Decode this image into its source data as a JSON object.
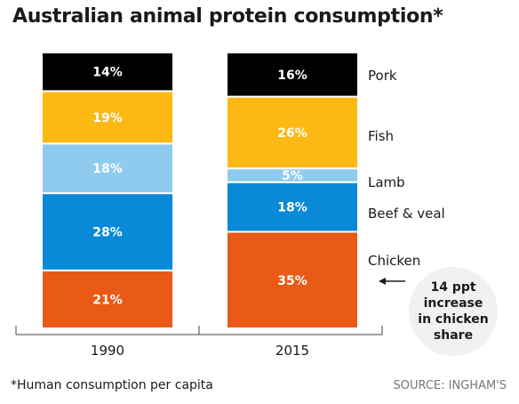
{
  "title": "Australian animal protein consumption*",
  "footnote": "*Human consumption per capita",
  "source": "SOURCE: INGHAM'S",
  "annotation": {
    "lines": [
      "14 ppt",
      "increase",
      "in chicken",
      "share"
    ]
  },
  "colors": {
    "Pork": "#000000",
    "Fish": "#fdb913",
    "Lamb": "#8fcbee",
    "Beef & veal": "#0a8ad6",
    "Chicken": "#e85a16"
  },
  "chart_data": {
    "type": "bar",
    "stacked": true,
    "categories": [
      "1990",
      "2015"
    ],
    "series": [
      {
        "name": "Chicken",
        "values": [
          21,
          35
        ]
      },
      {
        "name": "Beef & veal",
        "values": [
          28,
          18
        ]
      },
      {
        "name": "Lamb",
        "values": [
          18,
          5
        ]
      },
      {
        "name": "Fish",
        "values": [
          19,
          26
        ]
      },
      {
        "name": "Pork",
        "values": [
          14,
          16
        ]
      }
    ],
    "value_suffix": "%",
    "legend_position": "right"
  }
}
